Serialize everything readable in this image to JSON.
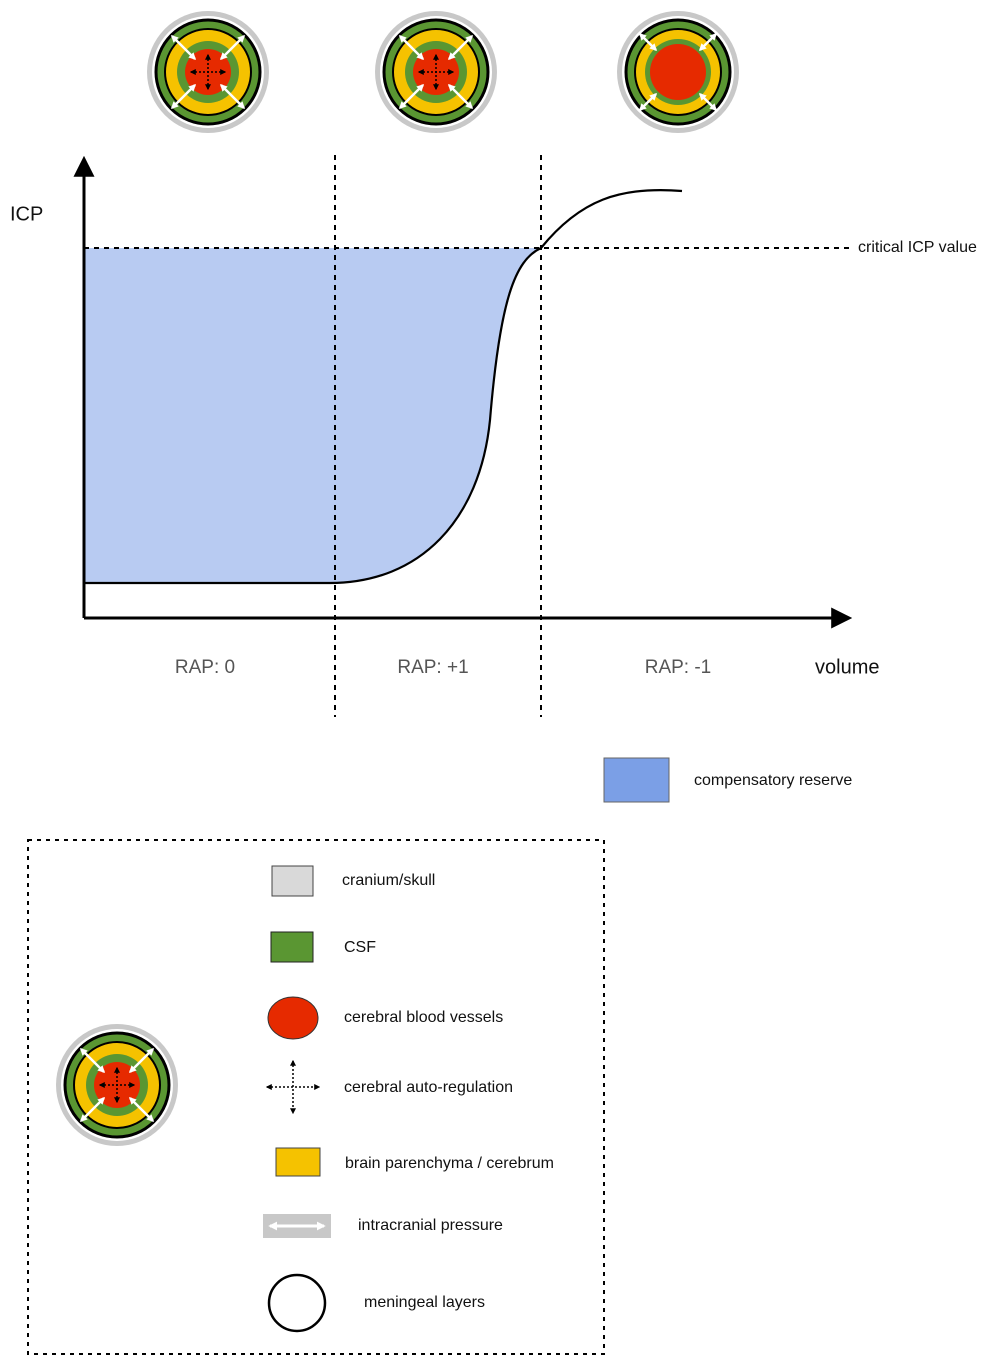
{
  "axes": {
    "y_label": "ICP",
    "x_label": "volume",
    "threshold_label": "critical ICP value"
  },
  "zones": [
    "RAP: 0",
    "RAP: +1",
    "RAP: -1"
  ],
  "reserve_legend": "compensatory reserve",
  "legend": {
    "items": [
      "cranium/skull",
      "CSF",
      "cerebral blood vessels",
      "cerebral auto-regulation",
      "brain parenchyma / cerebrum",
      "intracranial pressure",
      "meningeal layers"
    ]
  }
}
